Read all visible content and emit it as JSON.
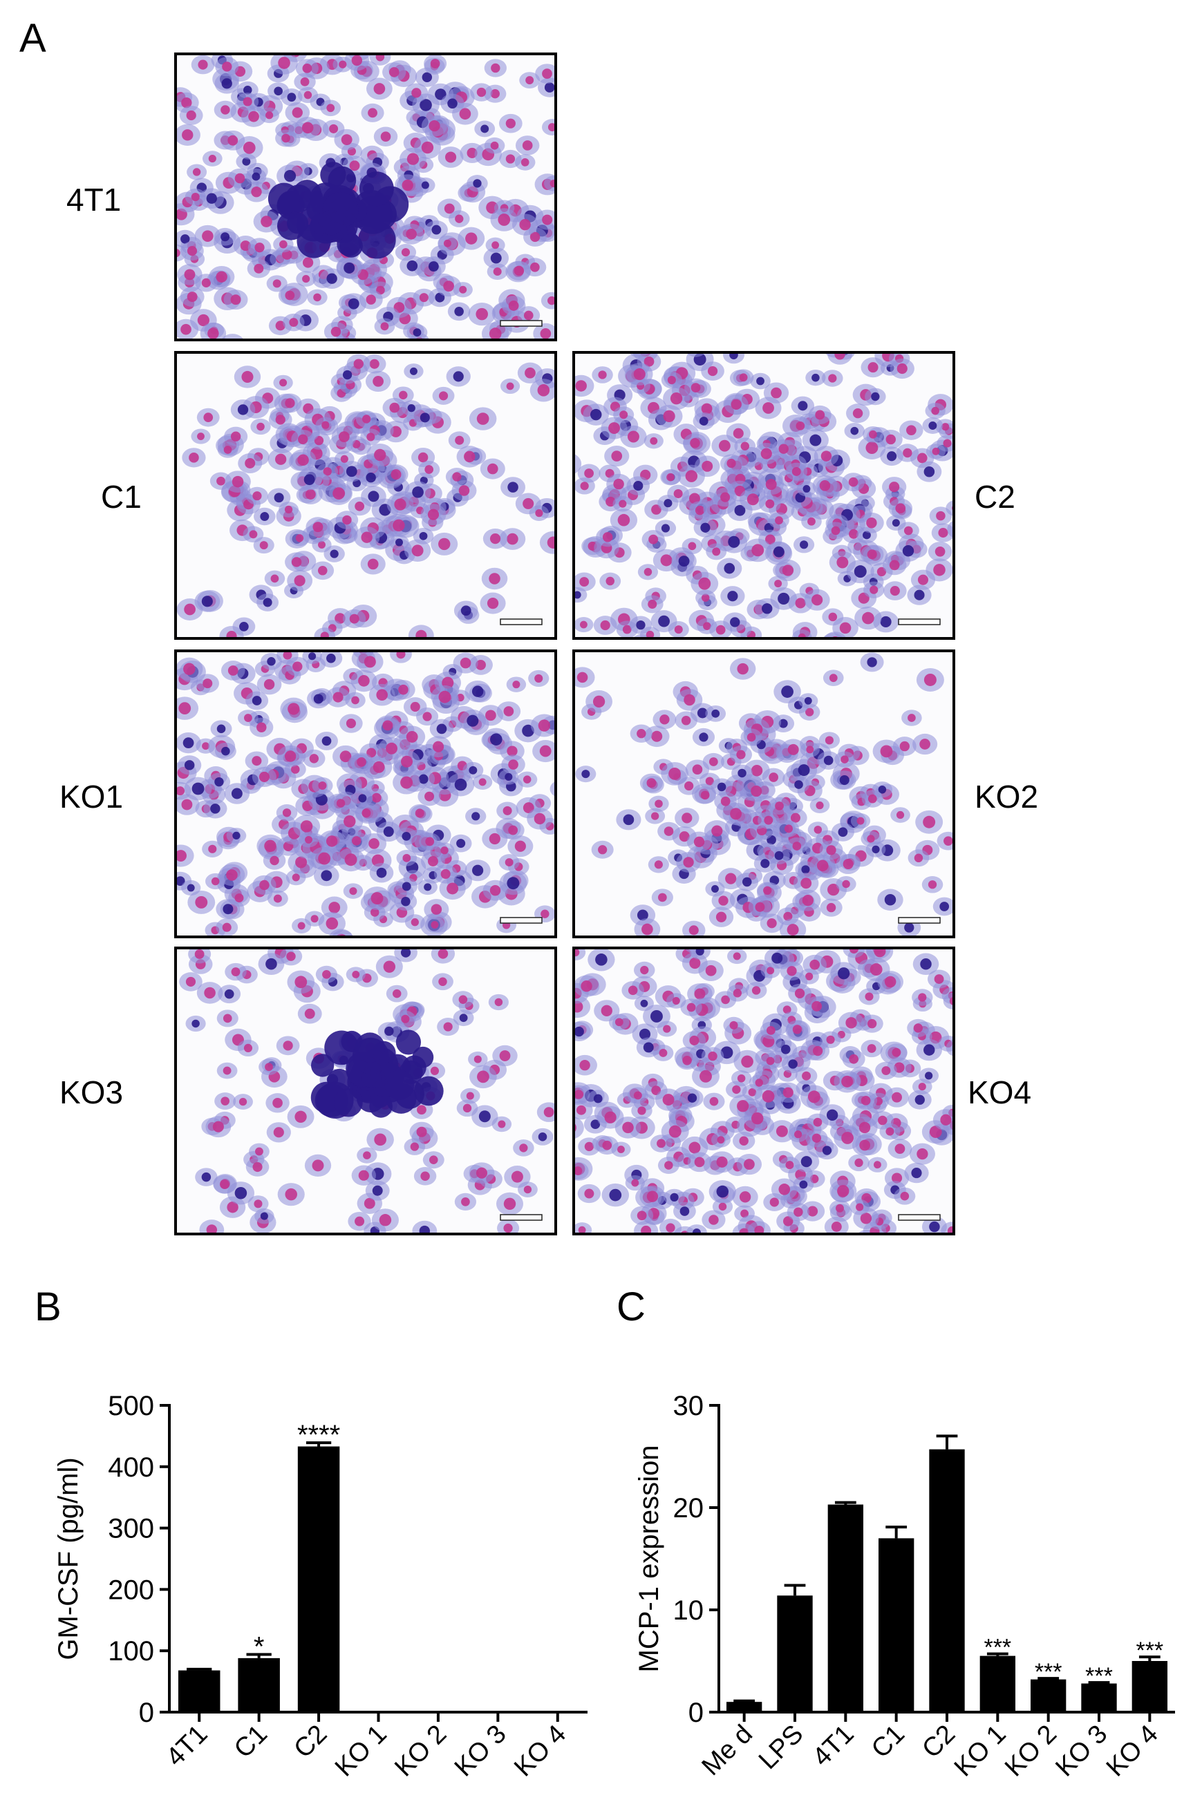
{
  "panels": {
    "a": {
      "letter": "A"
    },
    "b": {
      "letter": "B"
    },
    "c": {
      "letter": "C"
    }
  },
  "micrographs": [
    {
      "id": "4T1",
      "label": "4T1",
      "density": "dense",
      "cluster": true
    },
    {
      "id": "C1",
      "label": "C1",
      "density": "medium",
      "cluster": false
    },
    {
      "id": "C2",
      "label": "C2",
      "density": "dense",
      "cluster": false
    },
    {
      "id": "KO1",
      "label": "KO1",
      "density": "dense",
      "cluster": false
    },
    {
      "id": "KO2",
      "label": "KO2",
      "density": "medium",
      "cluster": false
    },
    {
      "id": "KO3",
      "label": "KO3",
      "density": "sparse",
      "cluster": true
    },
    {
      "id": "KO4",
      "label": "KO4",
      "density": "dense",
      "cluster": false
    }
  ],
  "colors": {
    "bar": "#000000",
    "stain_nucleus": "#c2358f",
    "stain_cytoplasm": "#8f8fd8",
    "stain_dark": "#2a1a8a",
    "background": "#fbfbfd"
  },
  "chart_data": [
    {
      "panel": "B",
      "type": "bar",
      "ylabel": "GM-CSF (pg/ml)",
      "xlabel": "",
      "categories": [
        "4T1",
        "C1",
        "C2",
        "KO 1",
        "KO 2",
        "KO 3",
        "KO 4"
      ],
      "values": [
        68,
        88,
        433,
        0,
        0,
        0,
        0
      ],
      "errors": [
        2,
        6,
        6,
        0,
        0,
        0,
        0
      ],
      "annotations": [
        "",
        "*",
        "****",
        "",
        "",
        "",
        ""
      ],
      "ylim": [
        0,
        500
      ],
      "yticks": [
        0,
        100,
        200,
        300,
        400,
        500
      ],
      "grid": false
    },
    {
      "panel": "C",
      "type": "bar",
      "ylabel": "MCP-1 expression",
      "xlabel": "",
      "categories": [
        "Me d",
        "LPS",
        "4T1",
        "C1",
        "C2",
        "KO 1",
        "KO 2",
        "KO 3",
        "KO 4"
      ],
      "values": [
        1.0,
        11.4,
        20.3,
        17.0,
        25.7,
        5.5,
        3.2,
        2.8,
        5.0
      ],
      "errors": [
        0.1,
        1.0,
        0.2,
        1.1,
        1.3,
        0.2,
        0.1,
        0.1,
        0.4
      ],
      "annotations": [
        "",
        "",
        "",
        "",
        "",
        "***",
        "***",
        "***",
        "***"
      ],
      "ylim": [
        0,
        30
      ],
      "yticks": [
        0,
        10,
        20,
        30
      ],
      "grid": false
    }
  ]
}
